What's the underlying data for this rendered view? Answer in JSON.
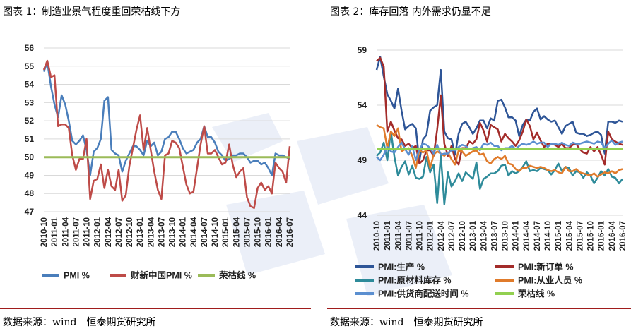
{
  "chart_data": [
    {
      "type": "line",
      "title": "图表 1：制造业景气程度重回荣枯线下方",
      "xlabel": "",
      "ylabel": "",
      "ylim": [
        47,
        56
      ],
      "yticks": [
        47,
        48,
        49,
        50,
        51,
        52,
        53,
        54,
        55,
        56
      ],
      "grid": true,
      "legend": "bottom",
      "x": [
        "2010-10",
        "2010-11",
        "2010-12",
        "2011-01",
        "2011-02",
        "2011-03",
        "2011-04",
        "2011-05",
        "2011-06",
        "2011-07",
        "2011-08",
        "2011-09",
        "2011-10",
        "2011-11",
        "2011-12",
        "2012-01",
        "2012-02",
        "2012-03",
        "2012-04",
        "2012-05",
        "2012-06",
        "2012-07",
        "2012-08",
        "2012-09",
        "2012-10",
        "2012-11",
        "2012-12",
        "2013-01",
        "2013-02",
        "2013-03",
        "2013-04",
        "2013-05",
        "2013-06",
        "2013-07",
        "2013-08",
        "2013-09",
        "2013-10",
        "2013-11",
        "2013-12",
        "2014-01",
        "2014-02",
        "2014-03",
        "2014-04",
        "2014-05",
        "2014-06",
        "2014-07",
        "2014-08",
        "2014-09",
        "2014-10",
        "2014-11",
        "2014-12",
        "2015-01",
        "2015-02",
        "2015-03",
        "2015-04",
        "2015-05",
        "2015-06",
        "2015-07",
        "2015-08",
        "2015-09",
        "2015-10",
        "2015-11",
        "2015-12",
        "2016-01",
        "2016-02",
        "2016-03",
        "2016-04",
        "2016-05",
        "2016-06",
        "2016-07"
      ],
      "xticks": [
        "2010-10",
        "2011-01",
        "2011-04",
        "2011-07",
        "2011-10",
        "2012-01",
        "2012-04",
        "2012-07",
        "2012-10",
        "2013-01",
        "2013-04",
        "2013-07",
        "2013-10",
        "2014-01",
        "2014-04",
        "2014-07",
        "2014-10",
        "2015-01",
        "2015-04",
        "2015-07",
        "2015-10",
        "2016-01",
        "2016-04",
        "2016-07"
      ],
      "series": [
        {
          "name": "PMI %",
          "color": "#4a7ebb",
          "values": [
            54.7,
            55.2,
            53.9,
            52.9,
            52.2,
            53.4,
            52.9,
            52.0,
            50.9,
            50.7,
            50.9,
            51.2,
            50.4,
            49.0,
            50.3,
            50.5,
            51.0,
            53.1,
            53.3,
            50.4,
            50.2,
            50.1,
            49.2,
            49.8,
            50.2,
            50.6,
            50.6,
            50.4,
            50.1,
            50.9,
            50.6,
            50.8,
            50.1,
            50.3,
            51.0,
            51.1,
            51.4,
            51.4,
            51.0,
            50.5,
            50.2,
            50.3,
            50.4,
            50.8,
            51.0,
            51.7,
            51.1,
            51.1,
            50.8,
            50.3,
            50.1,
            49.8,
            49.9,
            50.1,
            50.1,
            50.2,
            50.2,
            50.0,
            49.7,
            49.8,
            49.8,
            49.6,
            49.7,
            49.4,
            49.0,
            50.2,
            50.1,
            50.1,
            50.0,
            49.9
          ]
        },
        {
          "name": "财新中国PMI %",
          "color": "#be4b48",
          "values": [
            54.8,
            55.3,
            54.4,
            54.5,
            51.7,
            51.8,
            51.8,
            51.6,
            50.1,
            49.3,
            49.9,
            49.9,
            51.0,
            47.7,
            48.7,
            48.8,
            49.6,
            48.3,
            49.3,
            48.4,
            48.2,
            49.3,
            47.6,
            47.9,
            49.5,
            50.5,
            51.5,
            52.3,
            50.4,
            51.6,
            50.4,
            49.2,
            48.2,
            47.7,
            50.1,
            50.2,
            50.9,
            50.8,
            50.5,
            49.5,
            48.5,
            48.0,
            48.1,
            49.4,
            50.7,
            51.7,
            50.2,
            50.2,
            50.4,
            50.0,
            49.6,
            49.7,
            50.7,
            49.6,
            48.9,
            49.2,
            49.4,
            47.8,
            47.3,
            47.2,
            48.3,
            48.6,
            48.2,
            48.4,
            48.0,
            49.7,
            49.4,
            49.2,
            48.6,
            50.6
          ]
        },
        {
          "name": "荣枯线 %",
          "color": "#9bbb59",
          "values": [
            50,
            50,
            50,
            50,
            50,
            50,
            50,
            50,
            50,
            50,
            50,
            50,
            50,
            50,
            50,
            50,
            50,
            50,
            50,
            50,
            50,
            50,
            50,
            50,
            50,
            50,
            50,
            50,
            50,
            50,
            50,
            50,
            50,
            50,
            50,
            50,
            50,
            50,
            50,
            50,
            50,
            50,
            50,
            50,
            50,
            50,
            50,
            50,
            50,
            50,
            50,
            50,
            50,
            50,
            50,
            50,
            50,
            50,
            50,
            50,
            50,
            50,
            50,
            50,
            50,
            50,
            50,
            50,
            50,
            50
          ]
        }
      ],
      "source": "数据来源：wind　恒泰期货研究所"
    },
    {
      "type": "line",
      "title": "图表 2：库存回落 内外需求仍显不足",
      "xlabel": "",
      "ylabel": "",
      "ylim": [
        44,
        59
      ],
      "yticks": [
        44,
        49,
        54,
        59
      ],
      "grid": true,
      "legend": "bottom",
      "x": [
        "2010-10",
        "2010-11",
        "2010-12",
        "2011-01",
        "2011-02",
        "2011-03",
        "2011-04",
        "2011-05",
        "2011-06",
        "2011-07",
        "2011-08",
        "2011-09",
        "2011-10",
        "2011-11",
        "2011-12",
        "2012-01",
        "2012-02",
        "2012-03",
        "2012-04",
        "2012-05",
        "2012-06",
        "2012-07",
        "2012-08",
        "2012-09",
        "2012-10",
        "2012-11",
        "2012-12",
        "2013-01",
        "2013-02",
        "2013-03",
        "2013-04",
        "2013-05",
        "2013-06",
        "2013-07",
        "2013-08",
        "2013-09",
        "2013-10",
        "2013-11",
        "2013-12",
        "2014-01",
        "2014-02",
        "2014-03",
        "2014-04",
        "2014-05",
        "2014-06",
        "2014-07",
        "2014-08",
        "2014-09",
        "2014-10",
        "2014-11",
        "2014-12",
        "2015-01",
        "2015-02",
        "2015-03",
        "2015-04",
        "2015-05",
        "2015-06",
        "2015-07",
        "2015-08",
        "2015-09",
        "2015-10",
        "2015-11",
        "2015-12",
        "2016-01",
        "2016-02",
        "2016-03",
        "2016-04",
        "2016-05",
        "2016-06",
        "2016-07"
      ],
      "xticks": [
        "2010-10",
        "2011-01",
        "2011-04",
        "2011-07",
        "2011-10",
        "2012-01",
        "2012-04",
        "2012-07",
        "2012-10",
        "2013-01",
        "2013-04",
        "2013-07",
        "2013-10",
        "2014-01",
        "2014-04",
        "2014-07",
        "2014-10",
        "2015-01",
        "2015-04",
        "2015-07",
        "2015-10",
        "2016-01",
        "2016-04",
        "2016-07"
      ],
      "series": [
        {
          "name": "PMI:生产 %",
          "color": "#2e5597",
          "values": [
            57.2,
            58.4,
            56.6,
            55.0,
            54.4,
            53.7,
            55.5,
            53.5,
            51.8,
            52.1,
            52.3,
            51.9,
            48.9,
            50.9,
            51.3,
            53.5,
            53.8,
            54.0,
            57.2,
            51.6,
            51.0,
            50.9,
            49.5,
            51.4,
            52.3,
            52.5,
            52.0,
            51.4,
            51.9,
            52.6,
            52.6,
            51.9,
            52.8,
            52.6,
            54.4,
            54.5,
            53.8,
            52.9,
            52.9,
            52.6,
            51.2,
            52.2,
            52.7,
            52.6,
            53.4,
            53.7,
            52.7,
            53.0,
            52.7,
            52.5,
            52.6,
            52.0,
            51.4,
            52.1,
            52.3,
            52.5,
            51.5,
            51.4,
            51.4,
            51.2,
            51.3,
            51.5,
            51.6,
            51.3,
            49.6,
            52.5,
            52.5,
            52.4,
            52.6,
            52.5
          ]
        },
        {
          "name": "PMI:新订单 %",
          "color": "#a32c2a",
          "values": [
            58.0,
            58.3,
            57.5,
            51.6,
            52.5,
            51.7,
            51.0,
            50.9,
            50.3,
            50.5,
            50.1,
            50.3,
            48.7,
            49.0,
            49.9,
            49.9,
            49.4,
            51.8,
            54.9,
            50.5,
            49.4,
            50.3,
            49.1,
            48.6,
            50.1,
            50.1,
            50.7,
            50.5,
            50.9,
            52.4,
            51.7,
            50.7,
            52.2,
            52.0,
            51.8,
            50.7,
            51.4,
            51.0,
            50.7,
            50.3,
            50.8,
            51.6,
            52.7,
            52.1,
            50.9,
            51.5,
            50.8,
            50.2,
            50.5,
            50.5,
            50.4,
            50.2,
            50.5,
            50.1,
            50.1,
            50.4,
            50.5,
            50.0,
            49.7,
            49.6,
            50.2,
            49.8,
            50.2,
            49.5,
            48.6,
            51.6,
            50.9,
            50.7,
            50.5,
            50.4
          ]
        },
        {
          "name": "PMI:原材料库存 %",
          "color": "#2e8b9a",
          "values": [
            49.4,
            49.7,
            50.6,
            49.0,
            51.6,
            49.3,
            47.6,
            48.4,
            48.9,
            47.7,
            48.5,
            47.4,
            47.3,
            47.5,
            49.3,
            47.9,
            48.6,
            45.1,
            49.5,
            45.0,
            47.9,
            46.6,
            47.1,
            47.8,
            47.1,
            47.9,
            47.6,
            47.3,
            48.8,
            46.4,
            47.3,
            47.5,
            47.8,
            47.8,
            48.0,
            48.5,
            48.6,
            47.6,
            48.0,
            47.8,
            48.0,
            48.4,
            48.9,
            48.0,
            48.1,
            48.0,
            48.3,
            48.2,
            48.1,
            47.7,
            48.1,
            48.7,
            48.0,
            48.4,
            48.3,
            47.6,
            48.0,
            47.9,
            47.4,
            47.9,
            47.6,
            46.9,
            47.4,
            48.0,
            47.6,
            48.2,
            47.5,
            47.4,
            46.9,
            47.3
          ]
        },
        {
          "name": "PMI:从业人员 %",
          "color": "#e07b2b",
          "values": [
            52.2,
            52.0,
            51.9,
            50.1,
            51.6,
            51.2,
            51.9,
            49.8,
            50.0,
            50.1,
            49.4,
            48.3,
            49.9,
            49.7,
            49.9,
            48.3,
            49.5,
            49.8,
            49.6,
            49.4,
            49.7,
            49.1,
            48.6,
            49.9,
            49.8,
            49.4,
            49.6,
            49.8,
            49.9,
            49.5,
            49.6,
            48.9,
            48.7,
            49.1,
            49.3,
            49.1,
            49.4,
            48.7,
            48.6,
            48.2,
            48.0,
            48.3,
            48.3,
            48.5,
            48.4,
            48.3,
            48.4,
            48.3,
            48.1,
            48.0,
            48.1,
            47.9,
            47.8,
            48.4,
            48.0,
            48.0,
            48.2,
            47.9,
            47.8,
            47.7,
            47.6,
            47.8,
            47.5,
            47.7,
            47.9,
            47.8,
            48.0,
            47.8,
            48.1,
            48.2
          ]
        },
        {
          "name": "PMI:供货商配送时间 %",
          "color": "#5b8fd0",
          "values": [
            49.3,
            49.0,
            49.5,
            50.2,
            49.8,
            49.7,
            50.2,
            50.6,
            50.0,
            49.5,
            50.3,
            49.0,
            50.0,
            50.5,
            50.4,
            50.1,
            49.6,
            50.4,
            49.5,
            49.6,
            49.6,
            49.9,
            49.9,
            50.2,
            50.4,
            50.3,
            50.0,
            50.1,
            50.2,
            49.9,
            50.5,
            50.4,
            50.6,
            50.3,
            50.3,
            49.9,
            50.1,
            50.1,
            50.3,
            50.0,
            50.3,
            50.5,
            50.4,
            50.5,
            50.7,
            50.5,
            50.6,
            50.6,
            50.2,
            50.5,
            50.5,
            50.4,
            50.6,
            50.4,
            50.3,
            50.6,
            50.5,
            50.5,
            50.6,
            50.7,
            50.6,
            50.5,
            50.7,
            50.6,
            50.1,
            50.5,
            50.8,
            50.4,
            50.6,
            50.7
          ]
        },
        {
          "name": "荣枯线 %",
          "color": "#92d050",
          "values": [
            50,
            50,
            50,
            50,
            50,
            50,
            50,
            50,
            50,
            50,
            50,
            50,
            50,
            50,
            50,
            50,
            50,
            50,
            50,
            50,
            50,
            50,
            50,
            50,
            50,
            50,
            50,
            50,
            50,
            50,
            50,
            50,
            50,
            50,
            50,
            50,
            50,
            50,
            50,
            50,
            50,
            50,
            50,
            50,
            50,
            50,
            50,
            50,
            50,
            50,
            50,
            50,
            50,
            50,
            50,
            50,
            50,
            50,
            50,
            50,
            50,
            50,
            50,
            50,
            50,
            50,
            50,
            50,
            50,
            50
          ]
        }
      ],
      "source": "数据来源：wind　恒泰期货研究所"
    }
  ]
}
